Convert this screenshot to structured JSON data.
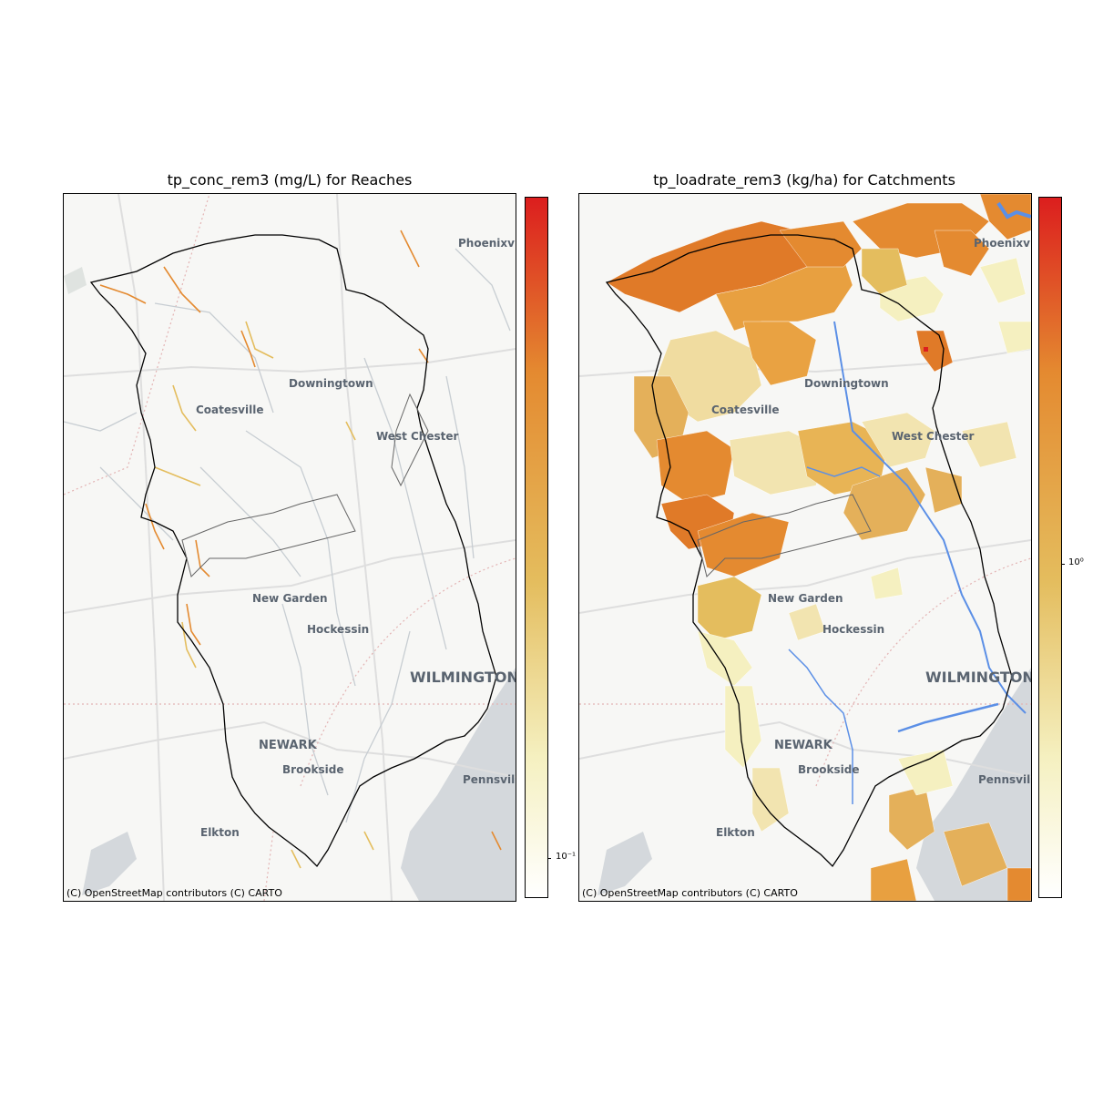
{
  "panels": [
    {
      "title": "tp_conc_rem3 (mg/L) for Reaches",
      "attribution": "(C) OpenStreetMap contributors (C) CARTO",
      "colorbar_tick": "10⁻¹",
      "colorbar_scale": "log",
      "features": "reaches"
    },
    {
      "title": "tp_loadrate_rem3 (kg/ha) for Catchments",
      "attribution": "(C) OpenStreetMap contributors (C) CARTO",
      "colorbar_tick": "10⁰",
      "colorbar_scale": "log",
      "features": "catchments"
    }
  ],
  "places": {
    "phoenixville": "Phoenixvi",
    "downingtown": "Downingtown",
    "coatesville": "Coatesville",
    "west_chester": "West Chester",
    "new_garden": "New Garden",
    "hockessin": "Hockessin",
    "wilmington": "WILMINGTON",
    "newark": "NEWARK",
    "brookside": "Brookside",
    "pennsville": "Pennsvill",
    "elkton": "Elkton"
  },
  "colors": {
    "colormap_low": "#ffffff",
    "colormap_mid1": "#f5f0c0",
    "colormap_mid2": "#e4bd5e",
    "colormap_mid3": "#e48a30",
    "colormap_high": "#dc1e1e",
    "boundary": "#000000",
    "river": "#5b8fe6",
    "water": "#d4d8dc",
    "basemap": "#f7f7f5"
  }
}
